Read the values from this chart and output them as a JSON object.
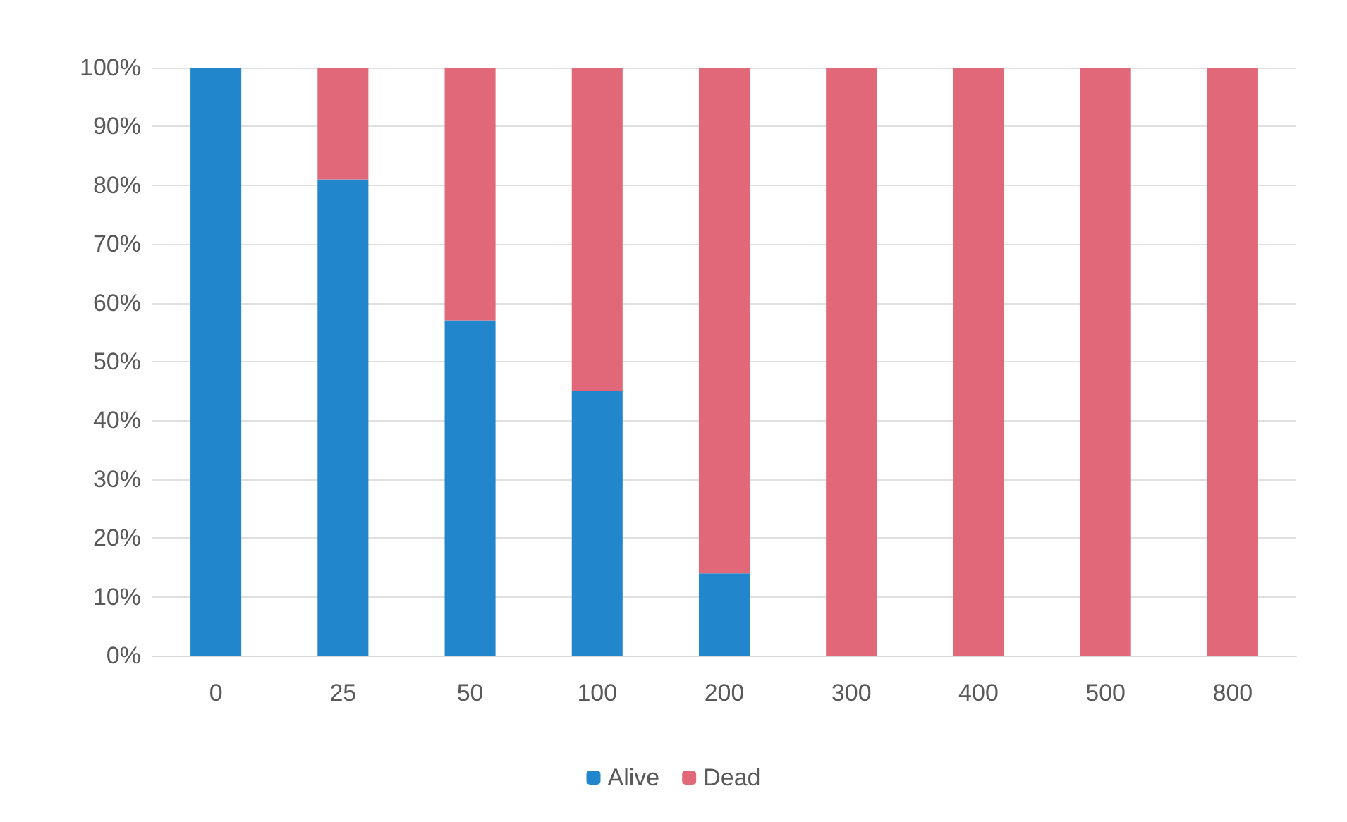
{
  "chart_data": {
    "type": "bar",
    "stacked": true,
    "categories": [
      "0",
      "25",
      "50",
      "100",
      "200",
      "300",
      "400",
      "500",
      "800"
    ],
    "series": [
      {
        "name": "Alive",
        "color": "#2186cc",
        "values": [
          100,
          81,
          57,
          45,
          14,
          0,
          0,
          0,
          0
        ]
      },
      {
        "name": "Dead",
        "color": "#e06878",
        "values": [
          0,
          19,
          43,
          55,
          86,
          100,
          100,
          100,
          100
        ]
      }
    ],
    "ylim": [
      0,
      100
    ],
    "yticks": [
      {
        "value": 0,
        "label": "0%"
      },
      {
        "value": 10,
        "label": "10%"
      },
      {
        "value": 20,
        "label": "20%"
      },
      {
        "value": 30,
        "label": "30%"
      },
      {
        "value": 40,
        "label": "40%"
      },
      {
        "value": 50,
        "label": "50%"
      },
      {
        "value": 60,
        "label": "60%"
      },
      {
        "value": 70,
        "label": "70%"
      },
      {
        "value": 80,
        "label": "80%"
      },
      {
        "value": 90,
        "label": "90%"
      },
      {
        "value": 100,
        "label": "100%"
      }
    ],
    "grid": "y",
    "legend": "bottom"
  }
}
